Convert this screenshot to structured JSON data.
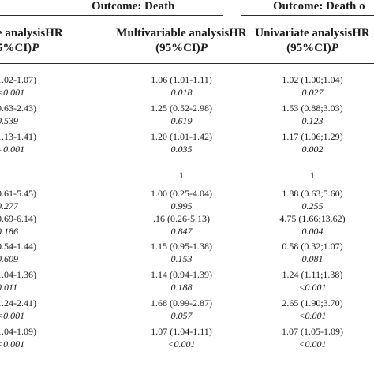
{
  "header": {
    "outcome_death": "Outcome: Death",
    "outcome_death_partial": "Outcome: Death o"
  },
  "columns": [
    {
      "label": "e analysisHR",
      "label2": "5%CI)",
      "p": "P"
    },
    {
      "label": "Multivariable analysisHR",
      "label2": "(95%CI)",
      "p": "P"
    },
    {
      "label": "Univariate analysisHR",
      "label2": "(95%CI)",
      "p": "P"
    }
  ],
  "rows": [
    {
      "c0": "1.02-1.07)",
      "c0p": "<0.001",
      "c1": "1.06 (1.01-1.11)",
      "c1p": "0.018",
      "c2": "1.02 (1.00;1.04)",
      "c2p": "0.027"
    },
    {
      "c0": "0.63-2.43)",
      "c0p": "0.539",
      "c1": "1.25 (0.52-2.98)",
      "c1p": "0.619",
      "c2": "1.53 (0.88;3.03)",
      "c2p": "0.123"
    },
    {
      "c0": "1.13-1.41)",
      "c0p": "<0.001",
      "c1": "1.20 (1.01-1.42)",
      "c1p": "0.035",
      "c2": "1.17 (1.06;1.29)",
      "c2p": "0.002"
    },
    {
      "c0": "1",
      "c0p": "",
      "c1": "1",
      "c1p": "",
      "c2": "1",
      "c2p": ""
    },
    {
      "c0": "0.61-5.45)",
      "c0p": "0.277",
      "c1": "1.00 (0.25-4.04)",
      "c1p": "0.995",
      "c2": "1.88 (0.63;5.60)",
      "c2p": "0.255"
    },
    {
      "c0": "0.69-6.14)",
      "c0p": "0.186",
      "c1": ".16 (0.26-5.13)",
      "c1p": "0.847",
      "c2": "4.75 (1.66;13.62)",
      "c2p": "0.004"
    },
    {
      "c0": "0.54-1.44)",
      "c0p": "0.609",
      "c1": "1.15 (0.95-1.38)",
      "c1p": "0.153",
      "c2": "0.58 (0.32;1.07)",
      "c2p": "0.081"
    },
    {
      "c0": "1.04-1.36)",
      "c0p": "0.011",
      "c1": "1.14 (0.94-1.39)",
      "c1p": "0.188",
      "c2": "1.24 (1.11;1.38)",
      "c2p": "<0.001"
    },
    {
      "c0": "1.24-2.41)",
      "c0p": "<0.001",
      "c1": "1.68 (0.99-2.87)",
      "c1p": "0.057",
      "c2": "2.65 (1.90;3.70)",
      "c2p": "<0.001"
    },
    {
      "c0": "1.04-1.09)",
      "c0p": "<0.001",
      "c1": "1.07 (1.04-1.11)",
      "c1p": "<0.001",
      "c2": "1.07 (1.05-1.09)",
      "c2p": "<0.001"
    }
  ]
}
